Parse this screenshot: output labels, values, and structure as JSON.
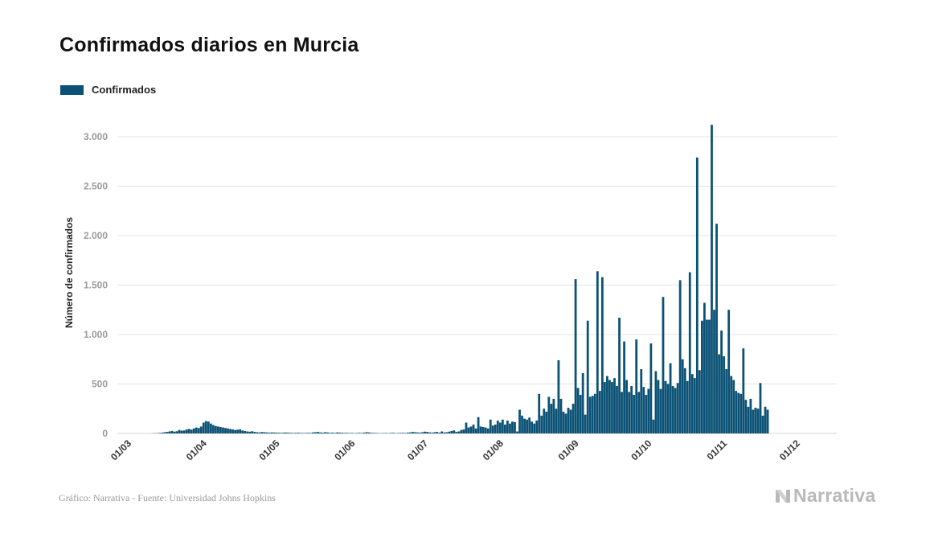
{
  "page": {
    "title": "Confirmados diarios en Murcia",
    "footer_source": "Gráfico: Narrativa - Fuente: Universidad Johns Hopkins",
    "brand": "Narrativa",
    "brand_icon": "narrativa-n-logo-icon"
  },
  "chart_data": {
    "type": "bar",
    "title": "Confirmados diarios en Murcia",
    "xlabel": "",
    "ylabel": "Número de confirmados",
    "ylim": [
      0,
      3200
    ],
    "yticks": [
      0,
      500,
      1000,
      1500,
      2000,
      2500,
      3000
    ],
    "ytick_labels": [
      "0",
      "500",
      "1.000",
      "1.500",
      "2.000",
      "2.500",
      "3.000"
    ],
    "xtick_labels": [
      "01/03",
      "01/04",
      "01/05",
      "01/06",
      "01/07",
      "01/08",
      "01/09",
      "01/10",
      "01/11",
      "01/12"
    ],
    "xticks_day": [
      0,
      31,
      61,
      92,
      122,
      153,
      184,
      214,
      245,
      275
    ],
    "x_start_date": "01/03",
    "grid": true,
    "legend_position": "top-left",
    "colors": {
      "bar": "#0b5175",
      "grid": "#e4e4e4",
      "tick_text": "#9b9b9b"
    },
    "series": [
      {
        "name": "Confirmados",
        "values": [
          0,
          0,
          0,
          0,
          0,
          0,
          0,
          0,
          0,
          0,
          0,
          0,
          0,
          0,
          1,
          2,
          3,
          5,
          8,
          12,
          15,
          20,
          25,
          18,
          22,
          35,
          28,
          30,
          40,
          45,
          38,
          50,
          60,
          55,
          70,
          110,
          125,
          120,
          100,
          85,
          75,
          70,
          65,
          60,
          55,
          50,
          45,
          40,
          35,
          38,
          42,
          30,
          25,
          20,
          18,
          22,
          15,
          12,
          10,
          14,
          12,
          10,
          8,
          10,
          9,
          8,
          7,
          6,
          8,
          9,
          7,
          6,
          5,
          6,
          7,
          5,
          4,
          5,
          6,
          5,
          10,
          12,
          15,
          10,
          8,
          12,
          10,
          6,
          8,
          5,
          10,
          8,
          7,
          5,
          6,
          4,
          5,
          3,
          4,
          6,
          5,
          8,
          12,
          10,
          6,
          5,
          4,
          3,
          2,
          3,
          4,
          2,
          5,
          6,
          3,
          4,
          5,
          6,
          4,
          8,
          10,
          15,
          12,
          10,
          8,
          12,
          18,
          15,
          10,
          8,
          12,
          15,
          8,
          20,
          10,
          12,
          18,
          25,
          30,
          15,
          20,
          35,
          40,
          110,
          60,
          70,
          90,
          50,
          165,
          70,
          65,
          60,
          50,
          140,
          80,
          90,
          130,
          110,
          140,
          90,
          130,
          100,
          120,
          115,
          20,
          240,
          180,
          150,
          140,
          160,
          120,
          100,
          130,
          400,
          180,
          250,
          220,
          370,
          300,
          350,
          250,
          740,
          350,
          220,
          200,
          260,
          240,
          300,
          1560,
          460,
          390,
          610,
          190,
          1140,
          370,
          380,
          400,
          1640,
          430,
          1580,
          520,
          580,
          540,
          520,
          560,
          480,
          1170,
          420,
          930,
          540,
          420,
          480,
          390,
          950,
          420,
          650,
          470,
          390,
          450,
          910,
          140,
          630,
          540,
          450,
          1380,
          530,
          500,
          710,
          480,
          460,
          510,
          1550,
          750,
          660,
          530,
          1630,
          600,
          560,
          2790,
          640,
          1140,
          1320,
          1150,
          1150,
          3120,
          1250,
          2120,
          800,
          1040,
          780,
          650,
          1250,
          580,
          540,
          430,
          410,
          400,
          860,
          340,
          270,
          350,
          240,
          260,
          250,
          510,
          180,
          270,
          240
        ]
      }
    ]
  }
}
